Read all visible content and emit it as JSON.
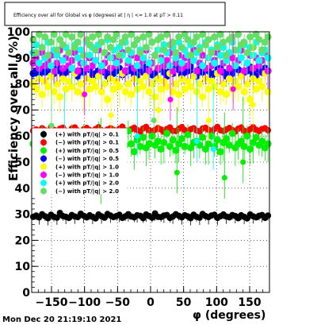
{
  "canvas": {
    "background": "#ffffff",
    "frame_color": "#000000"
  },
  "footer": {
    "timestamp": "Mon Dec 20 21:19:10 2021"
  },
  "chart_data": {
    "type": "scatter",
    "title": "Efficiency over all for Global vs φ (degrees) at | η | <= 1.0 at pT > 0.11",
    "xlabel": "φ (degrees)",
    "ylabel": "Efficiency over all (%)",
    "xlim": [
      -180,
      180
    ],
    "ylim": [
      0,
      100
    ],
    "x_ticks": [
      -150,
      -100,
      -50,
      0,
      50,
      100,
      150
    ],
    "x_tick_labels": [
      "−150",
      "−100",
      "−50",
      "0",
      "50",
      "100",
      "150"
    ],
    "y_ticks": [
      0,
      10,
      20,
      30,
      40,
      50,
      60,
      70,
      80,
      90,
      100
    ],
    "y_tick_labels": [
      "0",
      "10",
      "20",
      "30",
      "40",
      "50",
      "60",
      "70",
      "80",
      "90",
      "100"
    ],
    "grid": true,
    "legend_position": "left",
    "series": [
      {
        "name": "(+) with pT/|q| > 0.1",
        "color": "#000000",
        "values": [
          29,
          29.5,
          28.8,
          30,
          29.2,
          28.5,
          29.8,
          29,
          28.7,
          30.5,
          29.3,
          29,
          28.6,
          29.7,
          29.1,
          28.9,
          30.2,
          29.4,
          28.8,
          29.6,
          29,
          28.4,
          29.9,
          29.2,
          28.7,
          30.1,
          29.5,
          28.9,
          29.3,
          29.8,
          28.6,
          29.2,
          30,
          29.1,
          28.8,
          29.6,
          29.4,
          28.5,
          29.9,
          29.3,
          28.7,
          30.3,
          29,
          28.9,
          29.5,
          29.7,
          28.6,
          29.1,
          30,
          29.4,
          28.8,
          29.6,
          29.2,
          28.5,
          29.8,
          29,
          28.7,
          30.1,
          29.3,
          28.9,
          29.5,
          29.8,
          28.6,
          29.2,
          29.9,
          29.1,
          28.8,
          29.7,
          29.3,
          28.5,
          29.6,
          29,
          28.4,
          29.9,
          29.2,
          28.8,
          29.4,
          29.7,
          28.6,
          29.5
        ]
      },
      {
        "name": "(−) with pT/|q| > 0.1",
        "color": "#ff0000",
        "values": [
          62,
          62.5,
          61.5,
          63,
          62.2,
          61.8,
          63.5,
          62.4,
          61.9,
          62.8,
          63.2,
          62,
          61.6,
          62.9,
          63.3,
          62.1,
          61.7,
          62.6,
          63.1,
          62.3,
          61.9,
          62.7,
          63.4,
          62.2,
          61.8,
          62.5,
          63,
          62.4,
          61.6,
          62.8,
          63.6,
          62.1,
          61.9,
          62.6,
          63.2,
          62.3,
          61.7,
          62.9,
          63.5,
          62.2,
          61.8,
          62.4,
          63.1,
          62.5,
          61.6,
          62.7,
          63.3,
          62,
          61.9,
          62.8,
          63.4,
          62.3,
          61.7,
          62.6,
          63,
          62.1,
          61.8,
          62.9,
          63.2,
          62.4,
          61.6,
          62.7,
          63.5,
          62.2,
          61.9,
          62.5,
          63.1,
          62.3,
          61.7,
          62.8,
          63.3,
          62,
          61.8,
          62.6,
          63.4,
          62.4,
          61.9,
          62.7,
          63,
          62.2
        ]
      },
      {
        "name": "(+) with pT/|q| > 0.5",
        "color": "#00ee00",
        "values": [
          57,
          58,
          55,
          59,
          56,
          61,
          57.5,
          54,
          58.5,
          56.5,
          60,
          55.5,
          57,
          59.5,
          53,
          58,
          56,
          60.5,
          57,
          55,
          59,
          56.5,
          61.5,
          57.5,
          54.5,
          58,
          56,
          60,
          55,
          57.5,
          59,
          56.5,
          62,
          57,
          54,
          58.5,
          56,
          59.5,
          55.5,
          57,
          60,
          56.5,
          58,
          55,
          57.5,
          61,
          56,
          58.5,
          54.5,
          57,
          59,
          56,
          60.5,
          55.5,
          57.5,
          58,
          56.5,
          59.5,
          55,
          57,
          60,
          56,
          58.5,
          54,
          57.5,
          59,
          56.5,
          61,
          55.5,
          57,
          58,
          56,
          60,
          55,
          57.5,
          59.5,
          56.5,
          58,
          55.5,
          57
        ]
      },
      {
        "name": "(−) with pT/|q| > 0.5",
        "color": "#0000ff",
        "values": [
          84,
          85,
          83.5,
          86,
          84.5,
          85.5,
          83,
          84,
          86.5,
          85,
          83.5,
          84.5,
          85.5,
          86,
          84,
          83,
          85,
          84.5,
          86,
          85.5,
          83.5,
          84,
          85,
          86.5,
          84.5,
          83,
          85.5,
          84,
          85,
          86,
          83.5,
          84.5,
          85,
          86,
          84,
          83,
          85.5,
          84.5,
          86.5,
          85,
          83.5,
          84,
          85.5,
          86,
          84.5,
          83,
          85,
          84,
          86,
          85.5,
          83.5,
          84.5,
          85,
          86.5,
          84,
          83,
          85.5,
          84.5,
          86,
          85,
          83.5,
          84,
          85.5,
          86,
          84.5,
          83,
          85,
          84,
          86,
          85.5,
          83.5,
          84.5,
          85,
          86.5,
          84,
          83,
          85.5,
          84.5,
          86,
          85
        ]
      },
      {
        "name": "(+) with pT/|q| > 1.0",
        "color": "#ffff00",
        "values": [
          80,
          78,
          82,
          76,
          81,
          79,
          83,
          77,
          80,
          75,
          82,
          78,
          81,
          79,
          84,
          77,
          80,
          76,
          82,
          78,
          81,
          79,
          83,
          77,
          80,
          74,
          82,
          78,
          81,
          79,
          84,
          77,
          80,
          76,
          82,
          78,
          81,
          79,
          83,
          77,
          80,
          75,
          82,
          78,
          81,
          79,
          84,
          77,
          80,
          76,
          82,
          78,
          81,
          79,
          83,
          77,
          80,
          75,
          82,
          78,
          81,
          79,
          84,
          77,
          80,
          76,
          82,
          78,
          81,
          79,
          83,
          77,
          80,
          74,
          82,
          78,
          81,
          79,
          84,
          77
        ]
      },
      {
        "name": "(−) with pT/|q| > 1.0",
        "color": "#ff00ff",
        "values": [
          88,
          90,
          86,
          92,
          87,
          89,
          91,
          85,
          88,
          93,
          86,
          90,
          87,
          89,
          92,
          85,
          88,
          91,
          86,
          90,
          87,
          89,
          93,
          85,
          88,
          91,
          86,
          90,
          87,
          89,
          92,
          85,
          88,
          91,
          86,
          90,
          87,
          89,
          93,
          85,
          88,
          91,
          86,
          90,
          87,
          89,
          92,
          85,
          88,
          91,
          86,
          90,
          87,
          89,
          93,
          85,
          88,
          91,
          86,
          90,
          87,
          89,
          92,
          85,
          88,
          91,
          86,
          90,
          87,
          89,
          93,
          85,
          88,
          91,
          86,
          90,
          87,
          89,
          92,
          85
        ]
      },
      {
        "name": "(+) with pT/|q| > 2.0",
        "color": "#00ffff",
        "values": [
          92,
          95,
          88,
          94,
          90,
          96,
          87,
          93,
          91,
          97,
          89,
          94,
          92,
          86,
          95,
          90,
          93,
          88,
          96,
          91,
          94,
          89,
          95,
          87,
          92,
          97,
          90,
          93,
          88,
          94,
          91,
          96,
          89,
          92,
          95,
          87,
          93,
          90,
          94,
          88,
          96,
          91,
          93,
          89,
          95,
          92,
          87,
          94,
          90,
          96,
          88,
          93,
          91,
          95,
          89,
          92,
          94,
          87,
          96,
          90,
          93,
          88,
          95,
          91,
          94,
          89,
          92,
          96,
          87,
          93,
          90,
          95,
          88,
          94,
          91,
          96,
          89,
          92,
          93,
          90
        ]
      },
      {
        "name": "(−) with pT/|q| > 2.0",
        "color": "#66dd66",
        "values": [
          97,
          92,
          99,
          94,
          98,
          91,
          96,
          99,
          93,
          97,
          95,
          99,
          92,
          98,
          94,
          96,
          99,
          91,
          97,
          95,
          98,
          93,
          99,
          96,
          92,
          98,
          94,
          97,
          99,
          91,
          96,
          98,
          93,
          99,
          95,
          97,
          92,
          98,
          94,
          99,
          96,
          91,
          97,
          98,
          93,
          99,
          95,
          96,
          92,
          98,
          94,
          99,
          97,
          91,
          96,
          98,
          93,
          99,
          95,
          97,
          92,
          98,
          94,
          99,
          96,
          91,
          97,
          98,
          93,
          99,
          95,
          96,
          92,
          98,
          94,
          99,
          97,
          93,
          96,
          98
        ]
      }
    ],
    "outliers": [
      {
        "series": 2,
        "x": -75,
        "y": 42
      },
      {
        "series": 2,
        "x": 40,
        "y": 46
      },
      {
        "series": 2,
        "x": 112,
        "y": 44
      },
      {
        "series": 2,
        "x": 140,
        "y": 50
      },
      {
        "series": 4,
        "x": -60,
        "y": 68
      },
      {
        "series": 4,
        "x": 12,
        "y": 70
      },
      {
        "series": 4,
        "x": 88,
        "y": 66
      },
      {
        "series": 4,
        "x": 155,
        "y": 72
      },
      {
        "series": 5,
        "x": -100,
        "y": 76
      },
      {
        "series": 5,
        "x": 30,
        "y": 74
      },
      {
        "series": 5,
        "x": 125,
        "y": 78
      },
      {
        "series": 6,
        "x": -130,
        "y": 52
      },
      {
        "series": 6,
        "x": -20,
        "y": 60
      },
      {
        "series": 6,
        "x": 70,
        "y": 58
      },
      {
        "series": 6,
        "x": 95,
        "y": 55
      },
      {
        "series": 7,
        "x": -150,
        "y": 64
      },
      {
        "series": 7,
        "x": 5,
        "y": 66
      }
    ]
  }
}
